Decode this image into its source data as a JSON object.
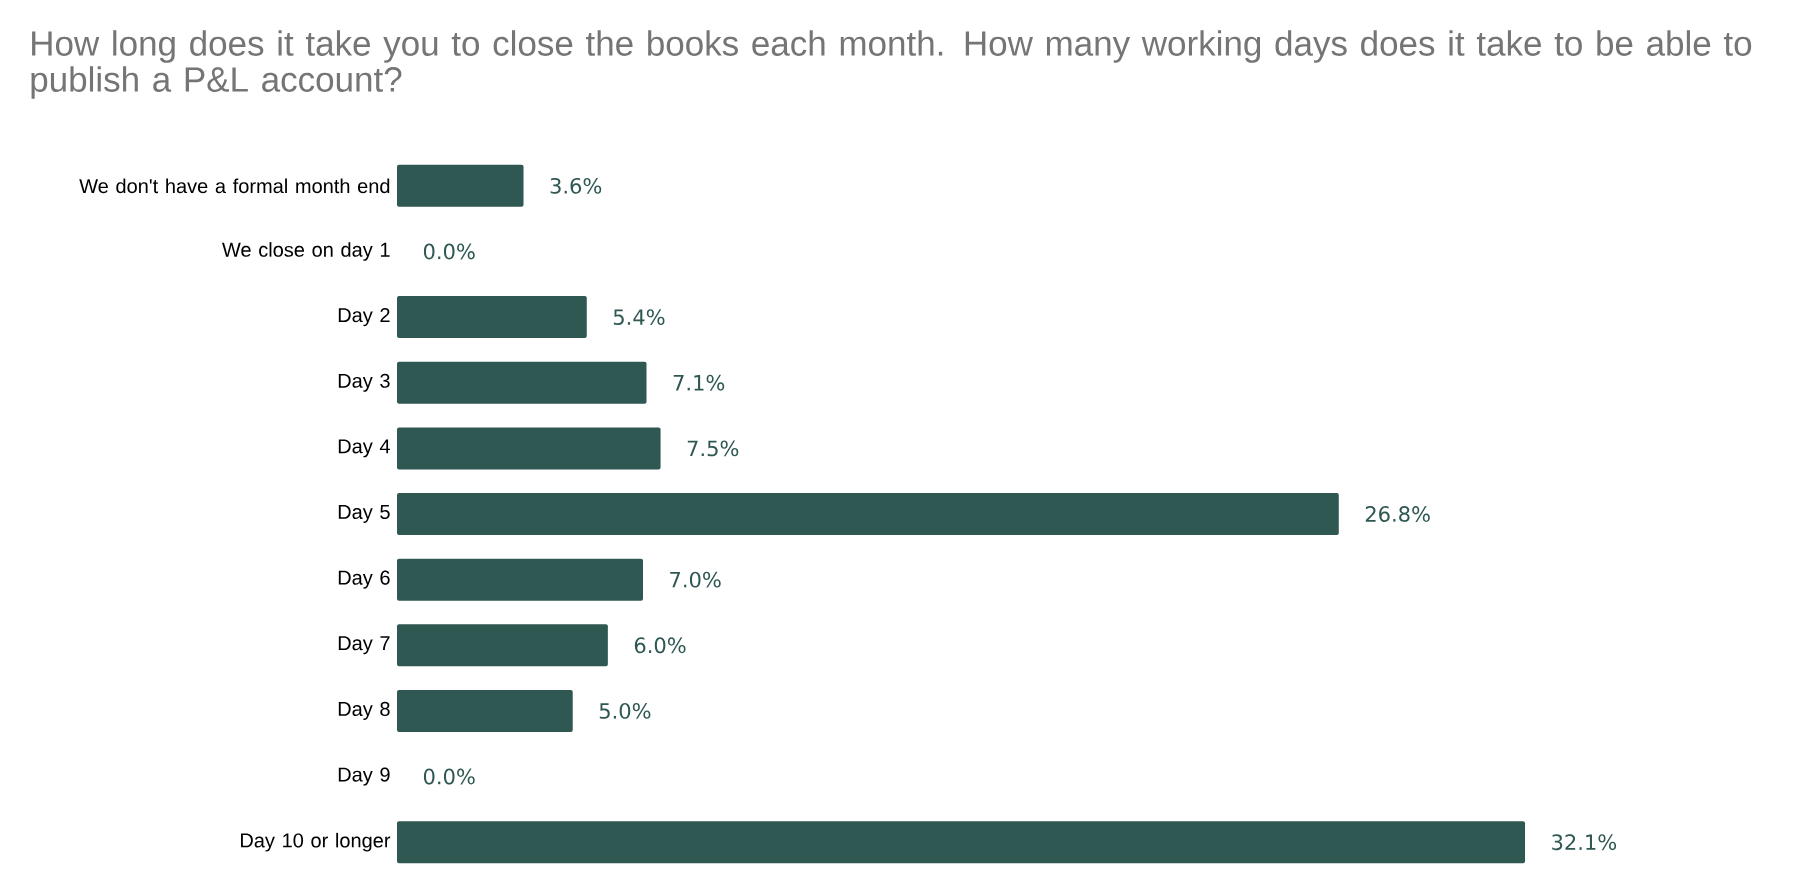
{
  "chart_data": {
    "type": "bar",
    "orientation": "horizontal",
    "title": "How long does it take you to close the books each month. How many working days does it take to be able to publish a P&L account?",
    "categories": [
      "We don't have a formal month end",
      "We close on day 1",
      "Day 2",
      "Day 3",
      "Day 4",
      "Day 5",
      "Day 6",
      "Day 7",
      "Day 8",
      "Day 9",
      "Day 10 or longer"
    ],
    "values": [
      3.6,
      0.0,
      5.4,
      7.1,
      7.5,
      26.8,
      7.0,
      6.0,
      5.0,
      0.0,
      32.1
    ],
    "value_labels": [
      "3.6%",
      "0.0%",
      "5.4%",
      "7.1%",
      "7.5%",
      "26.8%",
      "7.0%",
      "6.0%",
      "5.0%",
      "0.0%",
      "32.1%"
    ],
    "color": "#2f5853"
  }
}
